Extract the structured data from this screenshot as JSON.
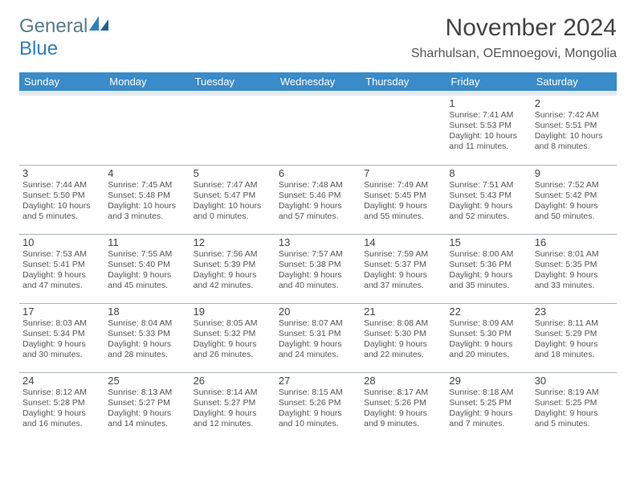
{
  "logo": {
    "textA": "General",
    "textB": "Blue"
  },
  "header": {
    "month_title": "November 2024",
    "location": "Sharhulsan, OEmnoegovi, Mongolia"
  },
  "colors": {
    "header_bg": "#3a8bc9",
    "header_fg": "#ffffff",
    "spacer_bg": "#e6e9ec",
    "border": "#aab3bb",
    "logo_gray": "#5a7a8a",
    "logo_blue": "#2e7fc1"
  },
  "day_headers": [
    "Sunday",
    "Monday",
    "Tuesday",
    "Wednesday",
    "Thursday",
    "Friday",
    "Saturday"
  ],
  "weeks": [
    [
      null,
      null,
      null,
      null,
      null,
      {
        "n": "1",
        "sr": "Sunrise: 7:41 AM",
        "ss": "Sunset: 5:53 PM",
        "dl": "Daylight: 10 hours and 11 minutes."
      },
      {
        "n": "2",
        "sr": "Sunrise: 7:42 AM",
        "ss": "Sunset: 5:51 PM",
        "dl": "Daylight: 10 hours and 8 minutes."
      }
    ],
    [
      {
        "n": "3",
        "sr": "Sunrise: 7:44 AM",
        "ss": "Sunset: 5:50 PM",
        "dl": "Daylight: 10 hours and 5 minutes."
      },
      {
        "n": "4",
        "sr": "Sunrise: 7:45 AM",
        "ss": "Sunset: 5:48 PM",
        "dl": "Daylight: 10 hours and 3 minutes."
      },
      {
        "n": "5",
        "sr": "Sunrise: 7:47 AM",
        "ss": "Sunset: 5:47 PM",
        "dl": "Daylight: 10 hours and 0 minutes."
      },
      {
        "n": "6",
        "sr": "Sunrise: 7:48 AM",
        "ss": "Sunset: 5:46 PM",
        "dl": "Daylight: 9 hours and 57 minutes."
      },
      {
        "n": "7",
        "sr": "Sunrise: 7:49 AM",
        "ss": "Sunset: 5:45 PM",
        "dl": "Daylight: 9 hours and 55 minutes."
      },
      {
        "n": "8",
        "sr": "Sunrise: 7:51 AM",
        "ss": "Sunset: 5:43 PM",
        "dl": "Daylight: 9 hours and 52 minutes."
      },
      {
        "n": "9",
        "sr": "Sunrise: 7:52 AM",
        "ss": "Sunset: 5:42 PM",
        "dl": "Daylight: 9 hours and 50 minutes."
      }
    ],
    [
      {
        "n": "10",
        "sr": "Sunrise: 7:53 AM",
        "ss": "Sunset: 5:41 PM",
        "dl": "Daylight: 9 hours and 47 minutes."
      },
      {
        "n": "11",
        "sr": "Sunrise: 7:55 AM",
        "ss": "Sunset: 5:40 PM",
        "dl": "Daylight: 9 hours and 45 minutes."
      },
      {
        "n": "12",
        "sr": "Sunrise: 7:56 AM",
        "ss": "Sunset: 5:39 PM",
        "dl": "Daylight: 9 hours and 42 minutes."
      },
      {
        "n": "13",
        "sr": "Sunrise: 7:57 AM",
        "ss": "Sunset: 5:38 PM",
        "dl": "Daylight: 9 hours and 40 minutes."
      },
      {
        "n": "14",
        "sr": "Sunrise: 7:59 AM",
        "ss": "Sunset: 5:37 PM",
        "dl": "Daylight: 9 hours and 37 minutes."
      },
      {
        "n": "15",
        "sr": "Sunrise: 8:00 AM",
        "ss": "Sunset: 5:36 PM",
        "dl": "Daylight: 9 hours and 35 minutes."
      },
      {
        "n": "16",
        "sr": "Sunrise: 8:01 AM",
        "ss": "Sunset: 5:35 PM",
        "dl": "Daylight: 9 hours and 33 minutes."
      }
    ],
    [
      {
        "n": "17",
        "sr": "Sunrise: 8:03 AM",
        "ss": "Sunset: 5:34 PM",
        "dl": "Daylight: 9 hours and 30 minutes."
      },
      {
        "n": "18",
        "sr": "Sunrise: 8:04 AM",
        "ss": "Sunset: 5:33 PM",
        "dl": "Daylight: 9 hours and 28 minutes."
      },
      {
        "n": "19",
        "sr": "Sunrise: 8:05 AM",
        "ss": "Sunset: 5:32 PM",
        "dl": "Daylight: 9 hours and 26 minutes."
      },
      {
        "n": "20",
        "sr": "Sunrise: 8:07 AM",
        "ss": "Sunset: 5:31 PM",
        "dl": "Daylight: 9 hours and 24 minutes."
      },
      {
        "n": "21",
        "sr": "Sunrise: 8:08 AM",
        "ss": "Sunset: 5:30 PM",
        "dl": "Daylight: 9 hours and 22 minutes."
      },
      {
        "n": "22",
        "sr": "Sunrise: 8:09 AM",
        "ss": "Sunset: 5:30 PM",
        "dl": "Daylight: 9 hours and 20 minutes."
      },
      {
        "n": "23",
        "sr": "Sunrise: 8:11 AM",
        "ss": "Sunset: 5:29 PM",
        "dl": "Daylight: 9 hours and 18 minutes."
      }
    ],
    [
      {
        "n": "24",
        "sr": "Sunrise: 8:12 AM",
        "ss": "Sunset: 5:28 PM",
        "dl": "Daylight: 9 hours and 16 minutes."
      },
      {
        "n": "25",
        "sr": "Sunrise: 8:13 AM",
        "ss": "Sunset: 5:27 PM",
        "dl": "Daylight: 9 hours and 14 minutes."
      },
      {
        "n": "26",
        "sr": "Sunrise: 8:14 AM",
        "ss": "Sunset: 5:27 PM",
        "dl": "Daylight: 9 hours and 12 minutes."
      },
      {
        "n": "27",
        "sr": "Sunrise: 8:15 AM",
        "ss": "Sunset: 5:26 PM",
        "dl": "Daylight: 9 hours and 10 minutes."
      },
      {
        "n": "28",
        "sr": "Sunrise: 8:17 AM",
        "ss": "Sunset: 5:26 PM",
        "dl": "Daylight: 9 hours and 9 minutes."
      },
      {
        "n": "29",
        "sr": "Sunrise: 8:18 AM",
        "ss": "Sunset: 5:25 PM",
        "dl": "Daylight: 9 hours and 7 minutes."
      },
      {
        "n": "30",
        "sr": "Sunrise: 8:19 AM",
        "ss": "Sunset: 5:25 PM",
        "dl": "Daylight: 9 hours and 5 minutes."
      }
    ]
  ]
}
